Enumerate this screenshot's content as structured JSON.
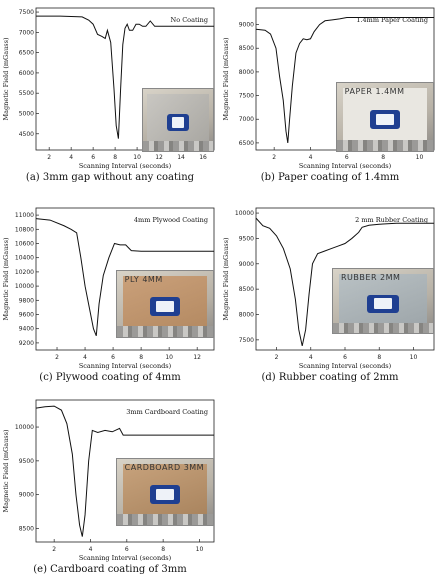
{
  "figure": {
    "panels": [
      {
        "id": "a",
        "caption": "(a) 3mm gap without any coating",
        "legend": "No Coating",
        "photo_label": ""
      },
      {
        "id": "b",
        "caption": "(b) Paper coating of 1.4mm",
        "legend": "1.4mm Paper Coating",
        "photo_label": "PAPER 1.4MM"
      },
      {
        "id": "c",
        "caption": "(c) Plywood coating of 4mm",
        "legend": "4mm Plywood Coating",
        "photo_label": "PLY 4MM"
      },
      {
        "id": "d",
        "caption": "(d) Rubber coating of 2mm",
        "legend": "2 mm Rubber Coating",
        "photo_label": "RUBBER 2MM"
      },
      {
        "id": "e",
        "caption": "(e) Cardboard coating of 3mm",
        "legend": "3mm Cardboard Coating",
        "photo_label": "CARDBOARD 3MM"
      }
    ]
  },
  "chart_data": [
    {
      "type": "line",
      "title": "",
      "xlabel": "Scanning Interval (seconds)",
      "ylabel": "Magnetic Field (mGauss)",
      "legend": "No Coating",
      "xlim": [
        0.8,
        17
      ],
      "ylim": [
        4100,
        7600
      ],
      "xticks": [
        2,
        4,
        6,
        8,
        10,
        12,
        14,
        16
      ],
      "yticks": [
        4500,
        5000,
        5500,
        6000,
        6500,
        7000,
        7500
      ],
      "series": [
        {
          "x": [
            0.8,
            3,
            5,
            5.6,
            6,
            6.4,
            6.8,
            7.1,
            7.3,
            7.6,
            7.9,
            8.1,
            8.3,
            8.5,
            8.7,
            8.9,
            9.1,
            9.3,
            9.6,
            9.9,
            10.2,
            10.5,
            10.8,
            11.2,
            11.6,
            12,
            13,
            14,
            15,
            16,
            17
          ],
          "y": [
            7400,
            7400,
            7380,
            7300,
            7200,
            6950,
            6900,
            6850,
            7050,
            6750,
            5600,
            4700,
            4380,
            5600,
            6700,
            7100,
            7200,
            7050,
            7050,
            7200,
            7200,
            7150,
            7150,
            7280,
            7150,
            7150,
            7150,
            7150,
            7150,
            7150,
            7150
          ]
        }
      ]
    },
    {
      "type": "line",
      "title": "",
      "xlabel": "Scanning Interval (seconds)",
      "ylabel": "Magnetic Field (mGauss)",
      "legend": "1.4mm Paper Coating",
      "xlim": [
        1,
        10.8
      ],
      "ylim": [
        6350,
        9350
      ],
      "xticks": [
        2,
        4,
        6,
        8,
        10
      ],
      "yticks": [
        6500,
        7000,
        7500,
        8000,
        8500,
        9000
      ],
      "series": [
        {
          "x": [
            1,
            1.5,
            1.8,
            2.1,
            2.3,
            2.5,
            2.65,
            2.75,
            2.85,
            3.0,
            3.2,
            3.4,
            3.6,
            3.8,
            4.0,
            4.2,
            4.5,
            4.8,
            5.2,
            5.6,
            6,
            7,
            8,
            9,
            10,
            10.8
          ],
          "y": [
            8900,
            8880,
            8800,
            8500,
            7900,
            7400,
            6750,
            6500,
            7000,
            7700,
            8400,
            8600,
            8700,
            8680,
            8700,
            8850,
            9000,
            9080,
            9100,
            9120,
            9150,
            9150,
            9150,
            9150,
            9150,
            9150
          ]
        }
      ]
    },
    {
      "type": "line",
      "title": "",
      "xlabel": "Scanning Interval (seconds)",
      "ylabel": "Magnetic Field (mGauss)",
      "legend": "4mm Plywood Coating",
      "xlim": [
        0.5,
        13.2
      ],
      "ylim": [
        9100,
        11100
      ],
      "xticks": [
        2,
        4,
        6,
        8,
        10,
        12
      ],
      "yticks": [
        9200,
        9400,
        9600,
        9800,
        10000,
        10200,
        10400,
        10600,
        10800,
        11000
      ],
      "series": [
        {
          "x": [
            0.5,
            1.5,
            2.5,
            3.0,
            3.4,
            3.7,
            4.0,
            4.3,
            4.6,
            4.8,
            5.0,
            5.3,
            5.7,
            6.1,
            6.5,
            6.9,
            7.3,
            8,
            9,
            10,
            11,
            12,
            13.2
          ],
          "y": [
            10950,
            10930,
            10850,
            10800,
            10750,
            10400,
            10000,
            9700,
            9400,
            9300,
            9750,
            10150,
            10400,
            10600,
            10580,
            10580,
            10500,
            10490,
            10490,
            10490,
            10490,
            10490,
            10490
          ]
        }
      ]
    },
    {
      "type": "line",
      "title": "",
      "xlabel": "Scanning Interval (seconds)",
      "ylabel": "Magnetic Field (mGauss)",
      "legend": "2 mm Rubber Coating",
      "xlim": [
        0.8,
        11.2
      ],
      "ylim": [
        7300,
        10100
      ],
      "xticks": [
        2,
        4,
        6,
        8,
        10
      ],
      "yticks": [
        7500,
        8000,
        8500,
        9000,
        9500,
        10000
      ],
      "series": [
        {
          "x": [
            0.8,
            1.2,
            1.6,
            2.0,
            2.4,
            2.8,
            3.1,
            3.3,
            3.5,
            3.7,
            3.9,
            4.1,
            4.4,
            4.8,
            5.2,
            5.6,
            6.0,
            6.4,
            6.8,
            7.0,
            7.4,
            8,
            9,
            10,
            11.2
          ],
          "y": [
            9900,
            9750,
            9700,
            9550,
            9300,
            8900,
            8300,
            7700,
            7380,
            7700,
            8400,
            9000,
            9200,
            9250,
            9300,
            9350,
            9400,
            9500,
            9620,
            9720,
            9760,
            9780,
            9800,
            9800,
            9800
          ]
        }
      ]
    },
    {
      "type": "line",
      "title": "",
      "xlabel": "Scanning Interval (seconds)",
      "ylabel": "Magnetic Field (mGauss)",
      "legend": "3mm Cardboard Coating",
      "xlim": [
        1,
        10.8
      ],
      "ylim": [
        8300,
        10400
      ],
      "xticks": [
        2,
        4,
        6,
        8,
        10
      ],
      "yticks": [
        8500,
        9000,
        9500,
        10000
      ],
      "series": [
        {
          "x": [
            1,
            1.5,
            2.0,
            2.4,
            2.7,
            3.0,
            3.2,
            3.4,
            3.55,
            3.7,
            3.9,
            4.1,
            4.4,
            4.8,
            5.2,
            5.6,
            5.8,
            6,
            7,
            8,
            9,
            10,
            10.8
          ],
          "y": [
            10280,
            10300,
            10310,
            10250,
            10050,
            9600,
            9000,
            8550,
            8380,
            8700,
            9500,
            9950,
            9920,
            9950,
            9930,
            9980,
            9880,
            9880,
            9880,
            9880,
            9880,
            9880,
            9880
          ]
        }
      ]
    }
  ]
}
